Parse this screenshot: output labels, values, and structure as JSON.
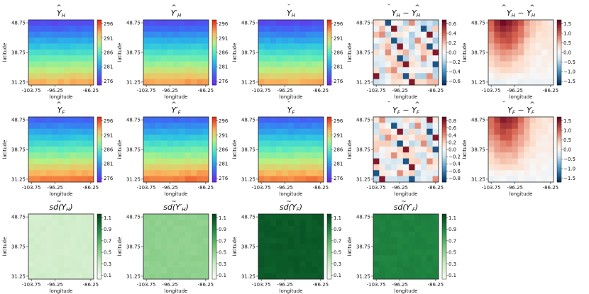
{
  "figure": {
    "grid_rows": 3,
    "grid_cols": 5
  },
  "chart_data": [
    {
      "type": "heatmap",
      "title": "Ŷ_H",
      "title_main": "Y",
      "title_accent": "^",
      "title_sub": "H",
      "row": 0,
      "col": 0,
      "colormap": "rainbow",
      "xlabel": "longitude",
      "ylabel": "latitude",
      "xticks": [
        "-103.75",
        "-96.25",
        "-86.25"
      ],
      "yticks": [
        "48.75",
        "38.75",
        "31.25"
      ],
      "cbar_ticks": [
        "296",
        "291",
        "286",
        "281",
        "276"
      ],
      "clim": [
        274,
        297
      ],
      "pattern": "temp",
      "offset": 0
    },
    {
      "type": "heatmap",
      "title": "Ŷ′_H",
      "title_main": "Y",
      "title_accent": "^",
      "title_sub": "H",
      "title_prime": "′",
      "row": 0,
      "col": 1,
      "colormap": "rainbow",
      "xlabel": "longitude",
      "ylabel": "latitude",
      "xticks": [
        "-103.75",
        "-96.25",
        "-86.25"
      ],
      "yticks": [
        "48.75",
        "38.75",
        "31.25"
      ],
      "cbar_ticks": [
        "296",
        "291",
        "286",
        "281",
        "276"
      ],
      "clim": [
        274,
        297
      ],
      "pattern": "temp",
      "offset": 0.3
    },
    {
      "type": "heatmap",
      "title": "Ȳ_H",
      "title_main": "Y",
      "title_accent": "¯",
      "title_sub": "H",
      "row": 0,
      "col": 2,
      "colormap": "rainbow",
      "xlabel": "longitude",
      "ylabel": "latitude",
      "xticks": [
        "-103.75",
        "-96.25",
        "-86.25"
      ],
      "yticks": [
        "48.75",
        "38.75",
        "31.25"
      ],
      "cbar_ticks": [
        "296",
        "291",
        "286",
        "281",
        "276"
      ],
      "clim": [
        274,
        297
      ],
      "pattern": "temp",
      "offset": 0
    },
    {
      "type": "heatmap",
      "title": "Ȳ_H − Ŷ_H",
      "title_main": "Y",
      "title_accent": "¯",
      "title_sub": "H",
      "title_rest": "Y",
      "title_rest_accent": "^",
      "title_rest_sub": "H",
      "row": 0,
      "col": 3,
      "colormap": "rdbu",
      "xlabel": "longitude",
      "ylabel": "latitude",
      "xticks": [
        "-103.75",
        "-96.25",
        "-86.25"
      ],
      "yticks": [
        "48.75",
        "38.75",
        "31.25"
      ],
      "cbar_ticks": [
        "0.6",
        "0.4",
        "0.2",
        "0.0",
        "−0.2",
        "−0.4",
        "−0.6"
      ],
      "clim": [
        -0.75,
        0.75
      ],
      "pattern": "noise",
      "seed": 3
    },
    {
      "type": "heatmap",
      "title": "Ŷ_H − Ŷ_H",
      "title_main": "Y",
      "title_accent": "^",
      "title_sub": "H",
      "title_rest": "Y",
      "title_rest_accent": "^",
      "title_rest_sub": "H",
      "row": 0,
      "col": 4,
      "colormap": "rdbu",
      "xlabel": "longitude",
      "ylabel": "latitude",
      "xticks": [
        "-103.75",
        "-96.25",
        "-86.25"
      ],
      "yticks": [
        "48.75",
        "38.75",
        "31.25"
      ],
      "cbar_ticks": [
        "1.5",
        "1.0",
        "0.5",
        "0.0",
        "−0.5",
        "−1.0",
        "−1.5"
      ],
      "clim": [
        -1.6,
        1.6
      ],
      "pattern": "gradient",
      "seed": 5
    },
    {
      "type": "heatmap",
      "title": "Ŷ_F",
      "title_main": "Y",
      "title_accent": "^",
      "title_sub": "F",
      "row": 1,
      "col": 0,
      "colormap": "rainbow",
      "xlabel": "longitude",
      "ylabel": "latitude",
      "xticks": [
        "-103.75",
        "-96.25",
        "-86.25"
      ],
      "yticks": [
        "48.75",
        "38.75",
        "31.25"
      ],
      "cbar_ticks": [
        "296",
        "291",
        "286",
        "281",
        "276"
      ],
      "clim": [
        274,
        297
      ],
      "pattern": "temp",
      "offset": 1.5
    },
    {
      "type": "heatmap",
      "title": "Ŷ′_F",
      "title_main": "Y",
      "title_accent": "^",
      "title_sub": "F",
      "title_prime": "′",
      "row": 1,
      "col": 1,
      "colormap": "rainbow",
      "xlabel": "longitude",
      "ylabel": "latitude",
      "xticks": [
        "-103.75",
        "-96.25",
        "-86.25"
      ],
      "yticks": [
        "48.75",
        "38.75",
        "31.25"
      ],
      "cbar_ticks": [
        "296",
        "291",
        "286",
        "281",
        "276"
      ],
      "clim": [
        274,
        297
      ],
      "pattern": "temp",
      "offset": 1.8
    },
    {
      "type": "heatmap",
      "title": "Ȳ_F",
      "title_main": "Y",
      "title_accent": "¯",
      "title_sub": "F",
      "row": 1,
      "col": 2,
      "colormap": "rainbow",
      "xlabel": "longitude",
      "ylabel": "latitude",
      "xticks": [
        "-103.75",
        "-96.25",
        "-86.25"
      ],
      "yticks": [
        "48.75",
        "38.75",
        "31.25"
      ],
      "cbar_ticks": [
        "296",
        "291",
        "286",
        "281",
        "276"
      ],
      "clim": [
        274,
        297
      ],
      "pattern": "temp",
      "offset": 1.5
    },
    {
      "type": "heatmap",
      "title": "Ȳ_F − Ŷ_F",
      "title_main": "Y",
      "title_accent": "¯",
      "title_sub": "F",
      "title_rest": "Y",
      "title_rest_accent": "^",
      "title_rest_sub": "F",
      "row": 1,
      "col": 3,
      "colormap": "rdbu",
      "xlabel": "longitude",
      "ylabel": "latitude",
      "xticks": [
        "-103.75",
        "-96.25",
        "-86.25"
      ],
      "yticks": [
        "48.75",
        "38.75",
        "31.25"
      ],
      "cbar_ticks": [
        "0.8",
        "0.6",
        "0.4",
        "0.2",
        "0.0",
        "−0.2",
        "−0.4",
        "−0.6",
        "−0.8"
      ],
      "clim": [
        -0.9,
        0.9
      ],
      "pattern": "noise",
      "seed": 11
    },
    {
      "type": "heatmap",
      "title": "Ȳ_F − Ŷ_F",
      "title_main": "Y",
      "title_accent": "¯",
      "title_sub": "F",
      "title_rest": "Y",
      "title_rest_accent": "^",
      "title_rest_sub": "F",
      "row": 1,
      "col": 4,
      "colormap": "rdbu",
      "xlabel": "longitude",
      "ylabel": "latitude",
      "xticks": [
        "-103.75",
        "-96.25",
        "-86.25"
      ],
      "yticks": [
        "48.75",
        "38.75",
        "31.25"
      ],
      "cbar_ticks": [
        "1.5",
        "1.0",
        "0.5",
        "0.0",
        "−0.5",
        "−1.0",
        "−1.5"
      ],
      "clim": [
        -1.7,
        1.7
      ],
      "pattern": "gradient",
      "seed": 7
    },
    {
      "type": "heatmap",
      "title": "sd(Y_H)",
      "title_main": "sd",
      "title_accent": "~",
      "title_paren": "Y",
      "title_sub": "H",
      "row": 2,
      "col": 0,
      "colormap": "greens",
      "xlabel": "longitude",
      "ylabel": "latitude",
      "xticks": [
        "-103.75",
        "-96.25",
        "-86.25"
      ],
      "yticks": [
        "48.75",
        "38.75",
        "31.25"
      ],
      "cbar_ticks": [
        "1.1",
        "0.9",
        "0.7",
        "0.5",
        "0.3",
        "0.1"
      ],
      "clim": [
        0.0,
        1.15
      ],
      "pattern": "flat",
      "base": 0.22
    },
    {
      "type": "heatmap",
      "title": "sd(Y′_H)",
      "title_main": "sd",
      "title_accent": "~",
      "title_paren": "Y",
      "title_sub": "H",
      "title_prime": "′",
      "row": 2,
      "col": 1,
      "colormap": "greens",
      "xlabel": "longitude",
      "ylabel": "latitude",
      "xticks": [
        "-103.75",
        "-96.25",
        "-86.25"
      ],
      "yticks": [
        "48.75",
        "38.75",
        "31.25"
      ],
      "cbar_ticks": [
        "1.1",
        "0.9",
        "0.7",
        "0.5",
        "0.3",
        "0.1"
      ],
      "clim": [
        0.0,
        1.15
      ],
      "pattern": "flat",
      "base": 0.48
    },
    {
      "type": "heatmap",
      "title": "sd(Y_F)",
      "title_main": "sd",
      "title_accent": "~",
      "title_paren": "Y",
      "title_sub": "F",
      "row": 2,
      "col": 2,
      "colormap": "greens",
      "xlabel": "longitude",
      "ylabel": "latitude",
      "xticks": [
        "-103.75",
        "-96.25",
        "-86.25"
      ],
      "yticks": [
        "48.75",
        "38.75",
        "31.25"
      ],
      "cbar_ticks": [
        "1.1",
        "0.9",
        "0.7",
        "0.5",
        "0.3",
        "0.1"
      ],
      "clim": [
        0.0,
        1.15
      ],
      "pattern": "flat",
      "base": 1.06
    },
    {
      "type": "heatmap",
      "title": "sd(Y′_F)",
      "title_main": "sd",
      "title_accent": "~",
      "title_paren": "Y",
      "title_sub": "F",
      "title_prime": "′",
      "row": 2,
      "col": 3,
      "colormap": "greens",
      "xlabel": "longitude",
      "ylabel": "latitude",
      "xticks": [
        "-103.75",
        "-96.25",
        "-86.25"
      ],
      "yticks": [
        "48.75",
        "38.75",
        "31.25"
      ],
      "cbar_ticks": [
        "1.1",
        "0.9",
        "0.7",
        "0.5",
        "0.3",
        "0.1"
      ],
      "clim": [
        0.0,
        1.15
      ],
      "pattern": "flat",
      "base": 0.9
    }
  ]
}
